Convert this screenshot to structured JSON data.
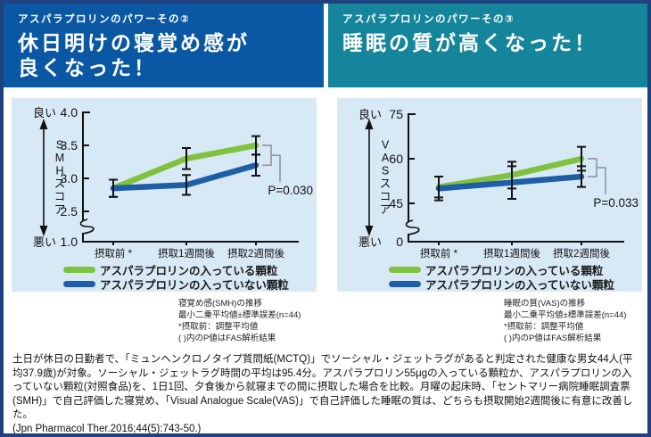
{
  "palette": {
    "frame_border": "#1f4180",
    "header_left_bg": "#0a57a4",
    "header_right_bg": "#15859b",
    "panel_bg": "#d8e9f6",
    "green": "#80c13d",
    "blue": "#1e5ea6",
    "axis": "#111111",
    "bracket": "#8b9198"
  },
  "headers": [
    {
      "subtitle": "アスパラプロリンのパワーその②",
      "title_lines": [
        "休日明けの寝覚め感が",
        "良くなった！"
      ]
    },
    {
      "subtitle": "アスパラプロリンのパワーその③",
      "title_lines": [
        "睡眠の質が高くなった！"
      ]
    }
  ],
  "chart_data": [
    {
      "type": "line",
      "title": "寝覚め感(SMH)の推移",
      "categories": [
        "摂取前 *",
        "摂取1週間後",
        "摂取2週間後"
      ],
      "series": [
        {
          "name": "アスパラプロリンの入っている顆粒",
          "color": "#80c13d",
          "values": [
            2.85,
            3.3,
            3.5
          ],
          "errors": [
            0.13,
            0.16,
            0.14
          ]
        },
        {
          "name": "アスパラプロリンの入っていない顆粒",
          "color": "#1e5ea6",
          "values": [
            2.85,
            2.9,
            3.2
          ],
          "errors": [
            0.13,
            0.15,
            0.16
          ]
        }
      ],
      "ylabel": "SMHスコア",
      "axis_good": "良い",
      "axis_bad": "悪い",
      "yticks": [
        {
          "v": 4.0,
          "label": "4.0"
        },
        {
          "v": 3.5,
          "label": "3.5"
        },
        {
          "v": 3.0,
          "label": "3.0"
        },
        {
          "v": 2.5,
          "label": "2.5"
        }
      ],
      "baseline": {
        "v": 1.0,
        "label": "1.0"
      },
      "axis_break": true,
      "p_label": "P=0.030",
      "notes": [
        "寝覚め感(SMH)の推移",
        "最小二乗平均値±標準誤差(n=44)",
        "*摂取前：調整平均値",
        "( )内のP値はFAS解析結果"
      ]
    },
    {
      "type": "line",
      "title": "睡眠の質(VAS)の推移",
      "categories": [
        "摂取前 *",
        "摂取1週間後",
        "摂取2週間後"
      ],
      "series": [
        {
          "name": "アスパラプロリンの入っている顆粒",
          "color": "#80c13d",
          "values": [
            50.5,
            54.5,
            60
          ],
          "errors": [
            3.5,
            4.5,
            4
          ]
        },
        {
          "name": "アスパラプロリンの入っていない顆粒",
          "color": "#1e5ea6",
          "values": [
            50,
            52,
            54
          ],
          "errors": [
            4,
            5.5,
            3.5
          ]
        }
      ],
      "ylabel": "VASスコア",
      "axis_good": "良い",
      "axis_bad": "悪い",
      "yticks": [
        {
          "v": 75,
          "label": "75"
        },
        {
          "v": 60,
          "label": "60"
        },
        {
          "v": 45,
          "label": "45"
        }
      ],
      "baseline": {
        "v": 0,
        "label": "0"
      },
      "axis_break": true,
      "p_label": "P=0.033",
      "notes": [
        "睡眠の質(VAS)の推移",
        "最小二乗平均値±標準誤差(n=44)",
        "*摂取前：調整平均値",
        "( )内のP値はFAS解析結果"
      ]
    }
  ],
  "footer": {
    "text": "土日が休日の日勤者で、「ミュンヘンクロノタイプ質問紙(MCTQ)」でソーシャル・ジェットラグがあると判定された健康な男女44人(平均37.9歳)が対象。ソーシャル・ジェットラグ時間の平均は95.4分。アスパラプロリン55μgの入っている顆粒か、アスパラプロリンの入っていない顆粒(対照食品)を、1日1回、夕食後から就寝までの間に摂取した場合を比較。月曜の起床時、「セントマリー病院睡眠調査票(SMH)」で自己評価した寝覚め、「Visual Analogue Scale(VAS)」で自己評価した睡眠の質は、どちらも摂取開始2週間後に有意に改善した。",
    "citation": "(Jpn Pharmacol Ther.2016;44(5):743-50.)"
  }
}
